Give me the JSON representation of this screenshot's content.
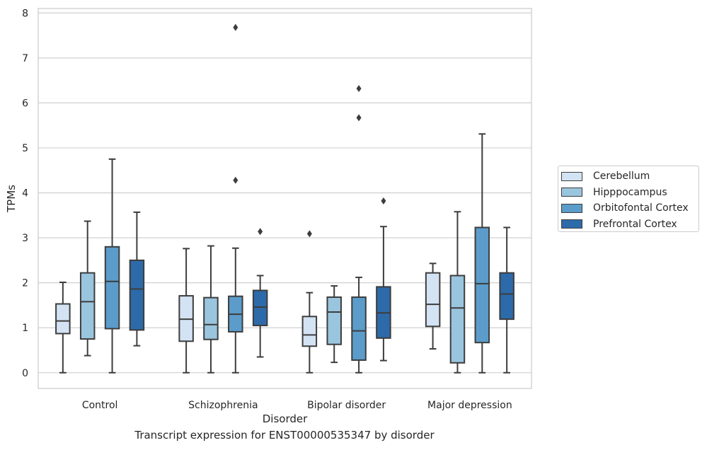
{
  "chart_data": {
    "type": "box",
    "xlabel": "Disorder",
    "ylabel": "TPMs",
    "caption": "Transcript expression for ENST00000535347 by disorder",
    "ylim": [
      -0.35,
      8.1
    ],
    "yticks": [
      0,
      1,
      2,
      3,
      4,
      5,
      6,
      7,
      8
    ],
    "grid": "horizontal",
    "legend_position": "right",
    "categories": [
      "Control",
      "Schizophrenia",
      "Bipolar disorder",
      "Major depression"
    ],
    "series": [
      {
        "name": "Cerebellum",
        "color": "#d3e3f3",
        "boxes": [
          {
            "min": 0.0,
            "q1": 0.87,
            "median": 1.15,
            "q3": 1.53,
            "max": 2.01,
            "outliers": []
          },
          {
            "min": 0.0,
            "q1": 0.7,
            "median": 1.19,
            "q3": 1.71,
            "max": 2.76,
            "outliers": []
          },
          {
            "min": 0.0,
            "q1": 0.59,
            "median": 0.84,
            "q3": 1.25,
            "max": 1.78,
            "outliers": [
              3.09
            ]
          },
          {
            "min": 0.53,
            "q1": 1.03,
            "median": 1.52,
            "q3": 2.22,
            "max": 2.43,
            "outliers": []
          }
        ]
      },
      {
        "name": "Hipppocampus",
        "color": "#9ac5de",
        "boxes": [
          {
            "min": 0.38,
            "q1": 0.75,
            "median": 1.58,
            "q3": 2.22,
            "max": 3.37,
            "outliers": []
          },
          {
            "min": 0.0,
            "q1": 0.74,
            "median": 1.07,
            "q3": 1.67,
            "max": 2.82,
            "outliers": []
          },
          {
            "min": 0.23,
            "q1": 0.63,
            "median": 1.35,
            "q3": 1.68,
            "max": 1.93,
            "outliers": []
          },
          {
            "min": 0.0,
            "q1": 0.22,
            "median": 1.44,
            "q3": 2.16,
            "max": 3.58,
            "outliers": []
          }
        ]
      },
      {
        "name": "Orbitofontal Cortex",
        "color": "#5b9cca",
        "boxes": [
          {
            "min": 0.0,
            "q1": 0.98,
            "median": 2.03,
            "q3": 2.8,
            "max": 4.75,
            "outliers": []
          },
          {
            "min": 0.0,
            "q1": 0.91,
            "median": 1.3,
            "q3": 1.7,
            "max": 2.77,
            "outliers": [
              4.28,
              7.68
            ]
          },
          {
            "min": 0.0,
            "q1": 0.28,
            "median": 0.93,
            "q3": 1.68,
            "max": 2.12,
            "outliers": [
              5.67,
              6.32
            ]
          },
          {
            "min": 0.0,
            "q1": 0.67,
            "median": 1.98,
            "q3": 3.23,
            "max": 5.31,
            "outliers": []
          }
        ]
      },
      {
        "name": "Prefrontal Cortex",
        "color": "#2d6aa9",
        "boxes": [
          {
            "min": 0.6,
            "q1": 0.95,
            "median": 1.86,
            "q3": 2.5,
            "max": 3.57,
            "outliers": []
          },
          {
            "min": 0.35,
            "q1": 1.05,
            "median": 1.46,
            "q3": 1.83,
            "max": 2.16,
            "outliers": [
              3.14
            ]
          },
          {
            "min": 0.27,
            "q1": 0.77,
            "median": 1.33,
            "q3": 1.91,
            "max": 3.25,
            "outliers": [
              3.82
            ]
          },
          {
            "min": 0.0,
            "q1": 1.19,
            "median": 1.75,
            "q3": 2.22,
            "max": 3.23,
            "outliers": []
          }
        ]
      }
    ]
  }
}
